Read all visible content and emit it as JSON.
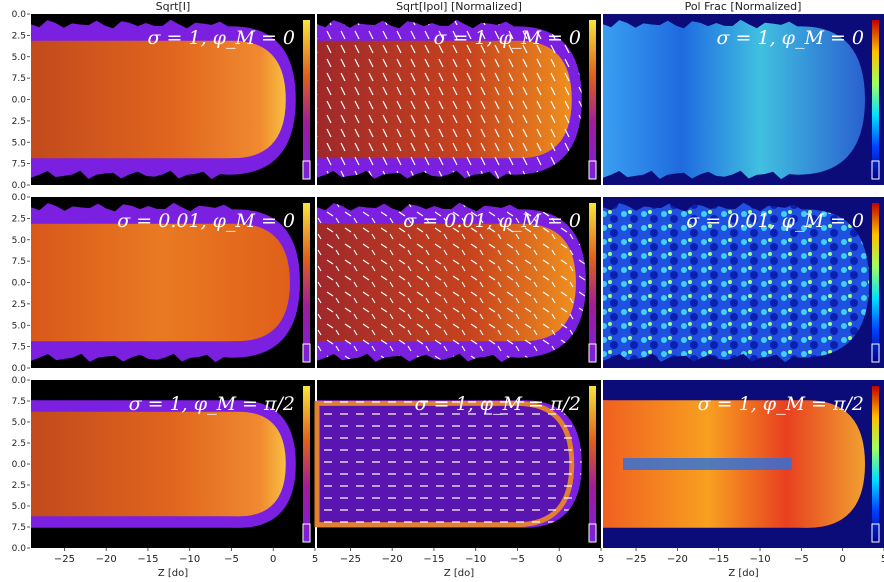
{
  "column_titles": [
    "Sqrt[I]",
    "Sqrt[Ipol] [Normalized]",
    "Pol Frac [Normalized]"
  ],
  "row_labels": [
    "σ = 1, φ_M = 0",
    "σ = 0.01, φ_M = 0",
    "σ = 1, φ_M = π/2"
  ],
  "colors": {
    "background_dark": "#000000",
    "jet_purple": "#7b1fe0",
    "jet_orange": "#e0601a",
    "jet_yellow": "#f7d23a",
    "polfrac_bg": "#0b0b7a"
  },
  "chart_data": {
    "type": "heatmap",
    "layout": "3 rows x 3 columns of image panels",
    "xlabel": "Z [do]",
    "xticks": [
      -25,
      -20,
      -15,
      -10,
      -5,
      0,
      5
    ],
    "xlim": [
      -29,
      5
    ],
    "yticks": {
      "row1": [
        "0.0",
        "2.5",
        "5.0",
        "7.5",
        "0.0",
        "2.5",
        "5.0",
        "7.5",
        "0.0"
      ],
      "row2": [
        "0.0",
        "2.5",
        "5.0",
        "7.5",
        "0.0",
        "2.5",
        "5.0",
        "7.5",
        "0.0"
      ],
      "row3": [
        "0.0",
        "7.5",
        "5.0",
        "2.5",
        "0.0",
        "2.5",
        "5.0",
        "7.5",
        "0.0"
      ]
    },
    "panels": [
      {
        "row": 1,
        "column": "Sqrt[I]",
        "label": "σ = 1, φ_M = 0",
        "colormap": "plasma"
      },
      {
        "row": 1,
        "column": "Sqrt[Ipol] [Normalized]",
        "label": "σ = 1, φ_M = 0",
        "colormap": "plasma",
        "polarization_vectors": true
      },
      {
        "row": 1,
        "column": "Pol Frac [Normalized]",
        "label": "σ = 1, φ_M = 0",
        "colormap": "jet"
      },
      {
        "row": 2,
        "column": "Sqrt[I]",
        "label": "σ = 0.01, φ_M = 0",
        "colormap": "plasma"
      },
      {
        "row": 2,
        "column": "Sqrt[Ipol] [Normalized]",
        "label": "σ = 0.01, φ_M = 0",
        "colormap": "plasma",
        "polarization_vectors": true
      },
      {
        "row": 2,
        "column": "Pol Frac [Normalized]",
        "label": "σ = 0.01, φ_M = 0",
        "colormap": "jet"
      },
      {
        "row": 3,
        "column": "Sqrt[I]",
        "label": "σ = 1, φ_M = π/2",
        "colormap": "plasma"
      },
      {
        "row": 3,
        "column": "Sqrt[Ipol] [Normalized]",
        "label": "σ = 1, φ_M = π/2",
        "colormap": "plasma",
        "polarization_vectors": true
      },
      {
        "row": 3,
        "column": "Pol Frac [Normalized]",
        "label": "σ = 1, φ_M = π/2",
        "colormap": "jet"
      }
    ]
  }
}
